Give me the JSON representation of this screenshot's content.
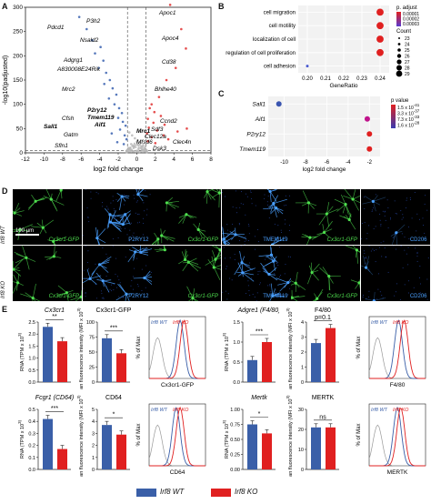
{
  "panels": {
    "a": "A",
    "b": "B",
    "c": "C",
    "d": "D",
    "e": "E"
  },
  "volcano": {
    "xlabel": "log2 fold change",
    "ylabel": "-log10(padjusted)",
    "xticks": [
      "-12",
      "-10",
      "-8",
      "-6",
      "-4",
      "-2",
      "0",
      "2",
      "4",
      "6",
      "8"
    ],
    "yticks": [
      "0",
      "50",
      "100",
      "150",
      "200",
      "250",
      "300"
    ],
    "genes_left": [
      "Pdcd1",
      "P3h2",
      "Nsald2",
      "Adgrg1",
      "A830008E24Rik",
      "Mrc2",
      "Cfsh",
      "Sall1",
      "Gatm",
      "Sfln1"
    ],
    "genes_center": [
      "P2ry12",
      "Tmem119",
      "Aif1",
      "Mrc1"
    ],
    "genes_right": [
      "Apoc1",
      "Apoc4",
      "Cd38",
      "Bhlhe40",
      "Ccnd2",
      "Sdf3",
      "Clec12a",
      "Mfsd6",
      "Clec4n",
      "Dsk3"
    ]
  },
  "chart_data": [
    {
      "type": "scatter",
      "title": "",
      "xlabel": "log2 fold change",
      "ylabel": "-log10(padjusted)",
      "xlim": [
        -12,
        8
      ],
      "ylim": [
        0,
        300
      ],
      "series": [
        {
          "name": "down",
          "color": "#3a62b0",
          "points": [
            [
              -6.2,
              280
            ],
            [
              -5.4,
              255
            ],
            [
              -4.8,
              232
            ],
            [
              -3.9,
              218
            ],
            [
              -4.5,
              205
            ],
            [
              -3.6,
              190
            ],
            [
              -4.1,
              175
            ],
            [
              -3.3,
              165
            ],
            [
              -2.9,
              150
            ],
            [
              -3.5,
              142
            ],
            [
              -2.6,
              133
            ],
            [
              -2.2,
              120
            ],
            [
              -3.0,
              112
            ],
            [
              -2.4,
              100
            ],
            [
              -1.9,
              92
            ],
            [
              -1.6,
              82
            ],
            [
              -2.0,
              72
            ],
            [
              -1.5,
              64
            ],
            [
              -1.2,
              56
            ],
            [
              -1.8,
              48
            ],
            [
              -2.7,
              40
            ],
            [
              -1.3,
              36
            ],
            [
              -1.1,
              28
            ],
            [
              -2.1,
              22
            ],
            [
              -1.4,
              18
            ]
          ]
        },
        {
          "name": "up",
          "color": "#e03030",
          "points": [
            [
              3.6,
              305
            ],
            [
              4.8,
              255
            ],
            [
              5.3,
              215
            ],
            [
              4.2,
              175
            ],
            [
              3.2,
              150
            ],
            [
              2.4,
              115
            ],
            [
              1.6,
              100
            ],
            [
              1.4,
              92
            ],
            [
              1.9,
              84
            ],
            [
              2.6,
              76
            ],
            [
              1.2,
              70
            ],
            [
              1.8,
              62
            ],
            [
              3.0,
              58
            ],
            [
              1.3,
              52
            ],
            [
              2.2,
              46
            ],
            [
              1.1,
              40
            ],
            [
              2.9,
              36
            ],
            [
              1.6,
              32
            ],
            [
              3.4,
              28
            ],
            [
              1.2,
              24
            ],
            [
              2.0,
              20
            ],
            [
              4.4,
              44
            ],
            [
              5.4,
              50
            ]
          ]
        },
        {
          "name": "ns",
          "color": "#b8b8b8",
          "points": [
            [
              -0.8,
              42
            ],
            [
              -0.5,
              36
            ],
            [
              -0.2,
              30
            ],
            [
              0.1,
              26
            ],
            [
              0.4,
              22
            ],
            [
              -0.6,
              18
            ],
            [
              0.7,
              16
            ],
            [
              -0.3,
              12
            ],
            [
              0.2,
              8
            ],
            [
              0.6,
              6
            ],
            [
              -0.9,
              10
            ],
            [
              0.9,
              12
            ],
            [
              0.0,
              4
            ],
            [
              -0.4,
              3
            ],
            [
              0.3,
              2
            ]
          ]
        }
      ]
    },
    {
      "type": "scatter",
      "title": "",
      "xlabel": "GeneRatio",
      "xticks": [
        "0.20",
        "0.21",
        "0.22",
        "0.23",
        "0.24"
      ],
      "xlim": [
        0.195,
        0.245
      ],
      "categories": [
        "cell migration",
        "cell motility",
        "localization of cell",
        "regulation of cell proliferation",
        "cell adhesion"
      ],
      "values": [
        0.24,
        0.24,
        0.24,
        0.24,
        0.2
      ],
      "counts": [
        29,
        29,
        29,
        29,
        23
      ],
      "legend_title_color": "p. adjust",
      "legend_color_ticks": [
        "0.00001",
        "0.00002",
        "0.00003"
      ],
      "legend_title_size": "Count",
      "legend_size_ticks": [
        "23",
        "24",
        "25",
        "26",
        "27",
        "28",
        "29"
      ]
    },
    {
      "type": "scatter",
      "title": "",
      "xlabel": "log2 fold change",
      "xticks": [
        "-10",
        "-8",
        "-6",
        "-4",
        "-2"
      ],
      "xlim": [
        -11.5,
        -1
      ],
      "categories": [
        "Sall1",
        "Aif1",
        "P2ry12",
        "Tmem119"
      ],
      "values": [
        -10.5,
        -2.2,
        -2.0,
        -2.0
      ],
      "colors": [
        "#3a55b0",
        "#c0148c",
        "#e02020",
        "#e02020"
      ],
      "legend_title": "p value",
      "legend_ticks": [
        "1.5 x 10^-41",
        "3.3 x 10^-37",
        "7.3 x 10^-33",
        "1.6 x 10^-28"
      ]
    },
    {
      "type": "bar",
      "title": "Cx3cr1",
      "ylabel": "RNA (TPM x 10^3)",
      "categories": [
        "Irf8 WT",
        "Irf8 KO"
      ],
      "values": [
        2.3,
        1.7
      ],
      "ylim": [
        0,
        2.5
      ],
      "yticks": [
        "0.0",
        "0.5",
        "1.0",
        "1.5",
        "2.0",
        "2.5"
      ],
      "significance": "**"
    },
    {
      "type": "bar",
      "title": "Cx3cr1-GFP",
      "ylabel": "mean fluorescence intensity (MFI x 10^3)",
      "categories": [
        "Irf8 WT",
        "Irf8 KO"
      ],
      "values": [
        73,
        48
      ],
      "ylim": [
        0,
        100
      ],
      "yticks": [
        "0",
        "25",
        "50",
        "75",
        "100"
      ],
      "significance": "***"
    },
    {
      "type": "bar",
      "title": "Adgre1 (F4/80)",
      "ylabel": "RNA (TPM x 10^3)",
      "categories": [
        "Irf8 WT",
        "Irf8 KO"
      ],
      "values": [
        0.55,
        1.0
      ],
      "ylim": [
        0,
        1.5
      ],
      "yticks": [
        "0.0",
        "0.5",
        "1.0",
        "1.5"
      ],
      "significance": "***"
    },
    {
      "type": "bar",
      "title": "F4/80",
      "ylabel": "mean fluorescence intensity (MFI x 10^3)",
      "categories": [
        "Irf8 WT",
        "Irf8 KO"
      ],
      "values": [
        2.6,
        3.6
      ],
      "ylim": [
        0,
        4
      ],
      "yticks": [
        "0",
        "1",
        "2",
        "3",
        "4"
      ],
      "significance": "p=0.1"
    },
    {
      "type": "bar",
      "title": "Fcgr1 (CD64)",
      "ylabel": "RNA (TPM x 10^3)",
      "categories": [
        "Irf8 WT",
        "Irf8 KO"
      ],
      "values": [
        0.42,
        0.17
      ],
      "ylim": [
        0,
        0.5
      ],
      "yticks": [
        "0.0",
        "0.1",
        "0.2",
        "0.3",
        "0.4",
        "0.5"
      ],
      "significance": "***"
    },
    {
      "type": "bar",
      "title": "CD64",
      "ylabel": "mean fluorescence intensity (MFI x 10^3)",
      "categories": [
        "Irf8 WT",
        "Irf8 KO"
      ],
      "values": [
        3.7,
        2.9
      ],
      "ylim": [
        0,
        5
      ],
      "yticks": [
        "0",
        "1",
        "2",
        "3",
        "4",
        "5"
      ],
      "significance": "*"
    },
    {
      "type": "bar",
      "title": "Mertk",
      "ylabel": "RNA (TPM x 10^3)",
      "categories": [
        "Irf8 WT",
        "Irf8 KO"
      ],
      "values": [
        0.75,
        0.6
      ],
      "ylim": [
        0,
        1.0
      ],
      "yticks": [
        "0.00",
        "0.25",
        "0.50",
        "0.75",
        "1.00"
      ],
      "significance": "*"
    },
    {
      "type": "bar",
      "title": "MERTK",
      "ylabel": "mean fluorescence intensity (MFI x 10^3)",
      "categories": [
        "Irf8 WT",
        "Irf8 KO"
      ],
      "values": [
        21,
        21
      ],
      "ylim": [
        0,
        30
      ],
      "yticks": [
        "0",
        "10",
        "20",
        "30"
      ],
      "significance": "ns"
    }
  ],
  "histograms": [
    {
      "xlabel": "Cx3cr1-GFP",
      "ylabel": "% of Max"
    },
    {
      "xlabel": "F4/80",
      "ylabel": "% of Max"
    },
    {
      "xlabel": "CD64",
      "ylabel": "% of Max"
    },
    {
      "xlabel": "MERTK",
      "ylabel": "% of Max"
    }
  ],
  "hist_legend": {
    "wt": "Irf8 WT",
    "ko": "Irf8 KO"
  },
  "microscopy": {
    "row_labels": [
      "Irf8 WT",
      "Irf8 KO"
    ],
    "scale": "100 µm",
    "channels": [
      "Cx3cr1-GFP",
      "P2RY12",
      "Cx3cr1-GFP",
      "TMEM119",
      "Cx3cr1-GFP",
      "CD206"
    ]
  },
  "legend": {
    "wt": "Irf8 WT",
    "ko": "Irf8 KO"
  },
  "colors": {
    "wt": "#3a5fa8",
    "ko": "#e02020",
    "grey": "#b8b8b8"
  }
}
